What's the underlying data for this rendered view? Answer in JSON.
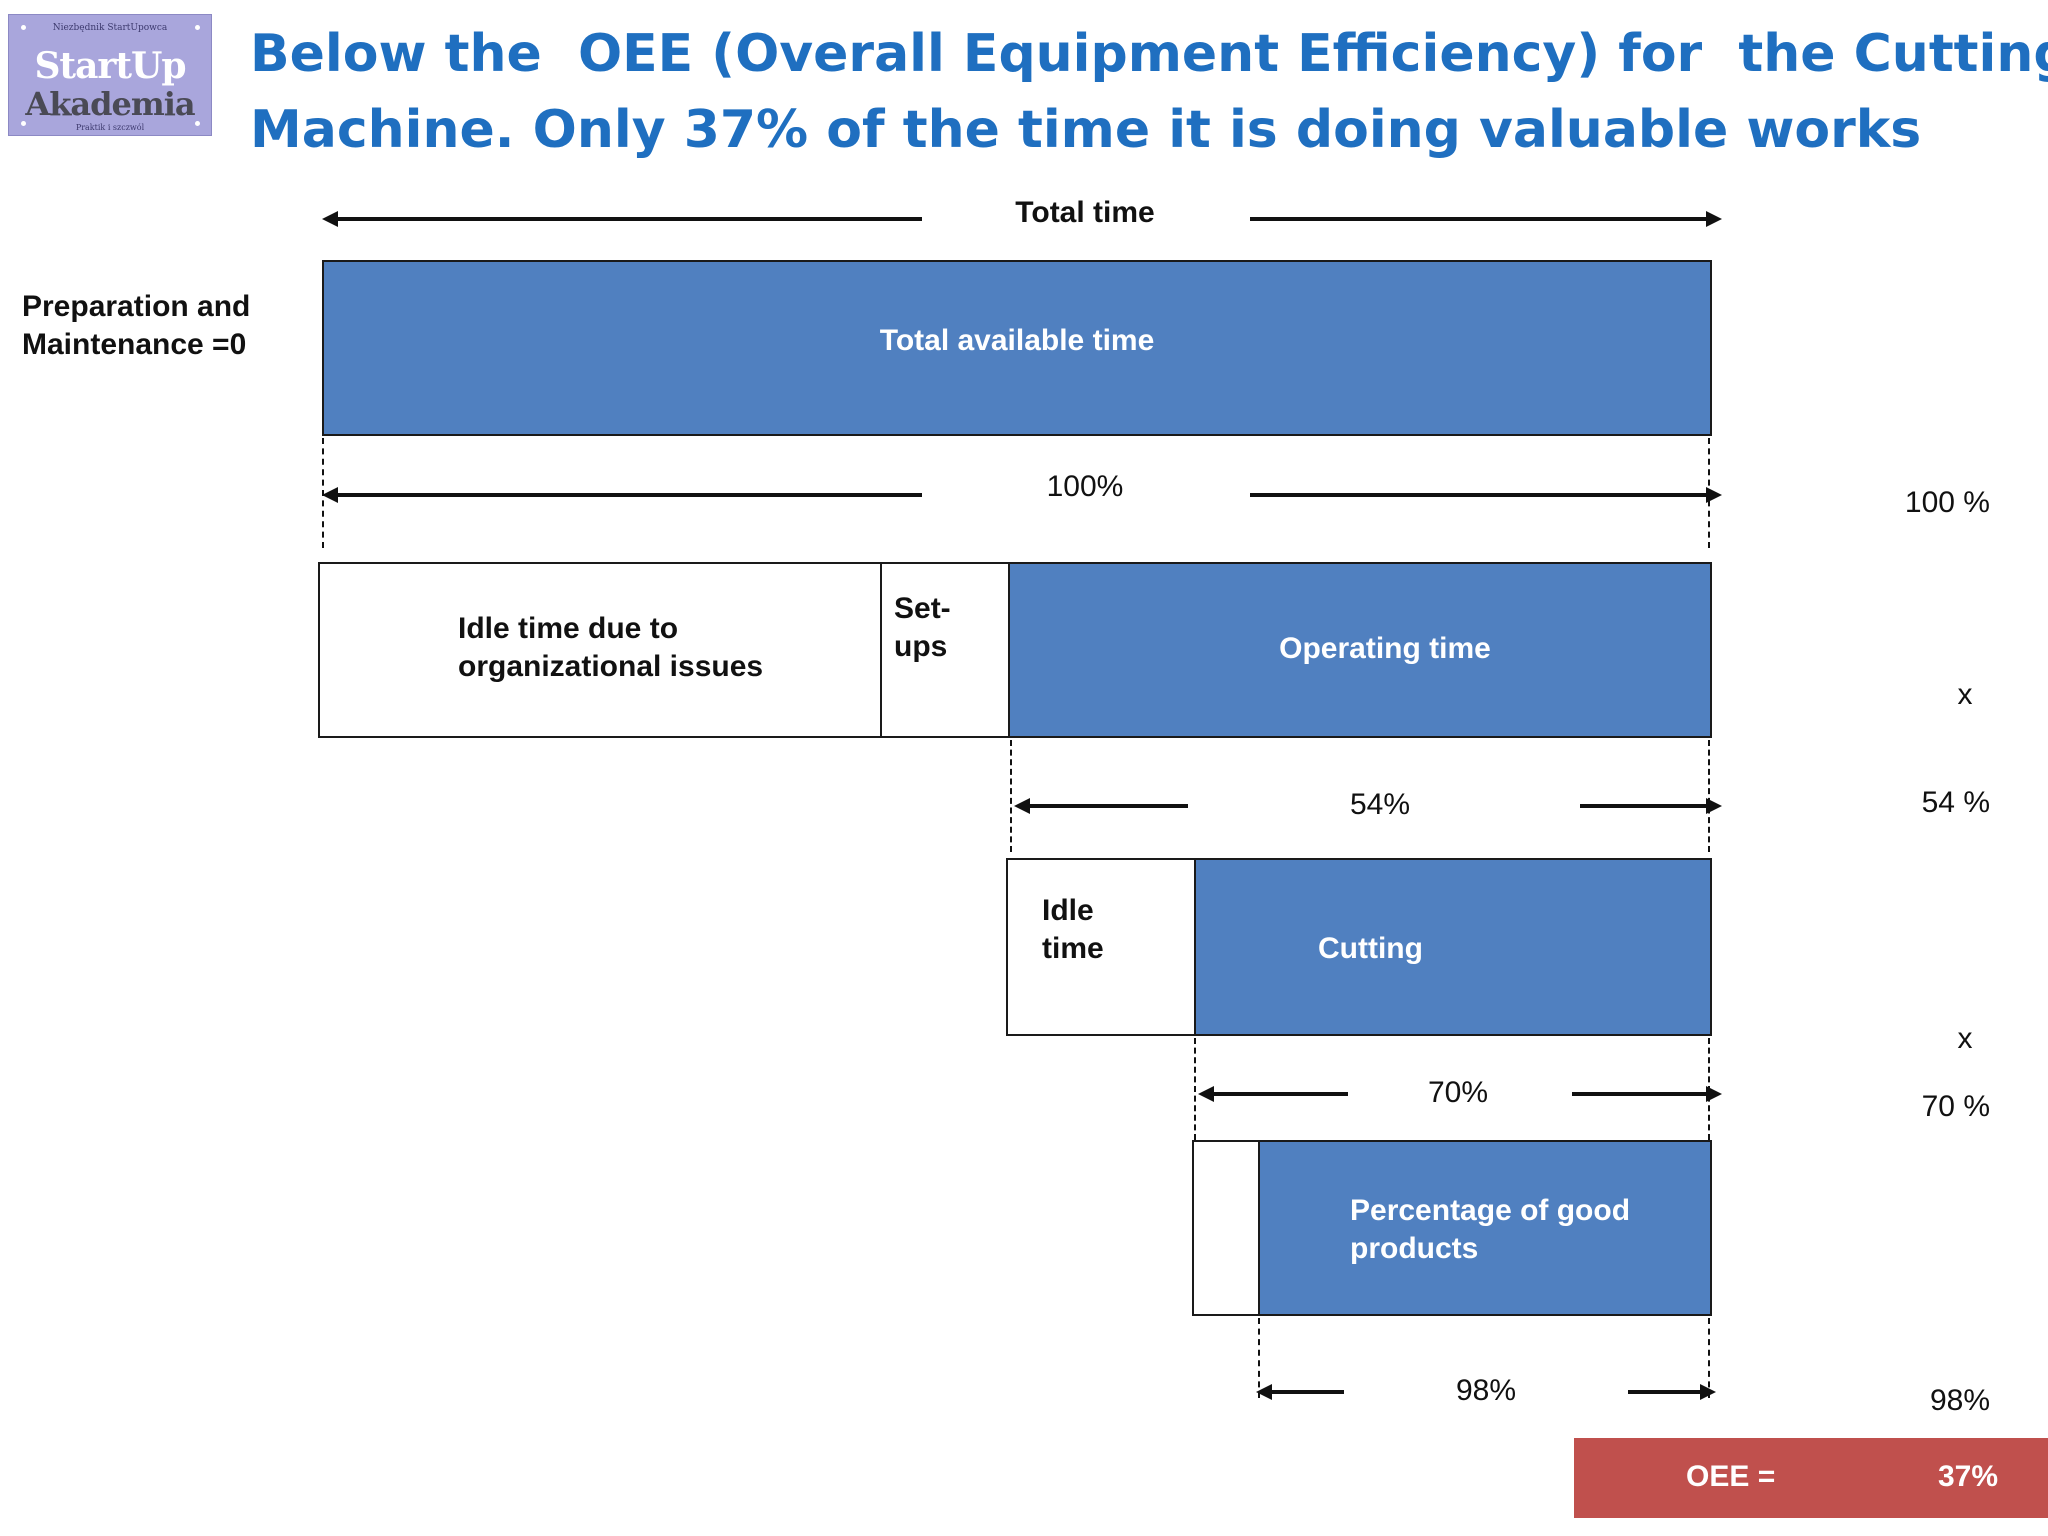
{
  "logo": {
    "top_text": "Niezbędnik StartUpowca",
    "line1": "StartUp",
    "line2": "Akademia",
    "bottom_text": "Praktik i szczwól"
  },
  "title": {
    "line1": "Below the  OEE (Overall Equipment Efficiency) for  the Cutting",
    "line2": "Machine. Only 37% of the time it is doing valuable works"
  },
  "diagram": {
    "total_time_label": "Total time",
    "prep_label_line1": "Preparation and",
    "prep_label_line2": "Maintenance =0",
    "total_available_label": "Total available time",
    "pct_100": "100%",
    "idle_org_line1": "Idle time due to",
    "idle_org_line2": "organizational issues",
    "setups_line1": "Set-",
    "setups_line2": "ups",
    "operating_label": "Operating time",
    "pct_54": "54%",
    "idle_line1": "Idle",
    "idle_line2": "time",
    "cutting_label": "Cutting",
    "pct_70": "70%",
    "good_line1": "Percentage of good",
    "good_line2": "products",
    "pct_98": "98%"
  },
  "right_column": {
    "r100": "100 %",
    "x1": "x",
    "r54": "54 %",
    "x2": "x",
    "r70": "70 %",
    "r98": "98%"
  },
  "oee": {
    "label": "OEE =",
    "value": "37%"
  },
  "colors": {
    "title": "#1f6fc0",
    "bar": "#5080c0",
    "oee_box": "#c0504d"
  }
}
